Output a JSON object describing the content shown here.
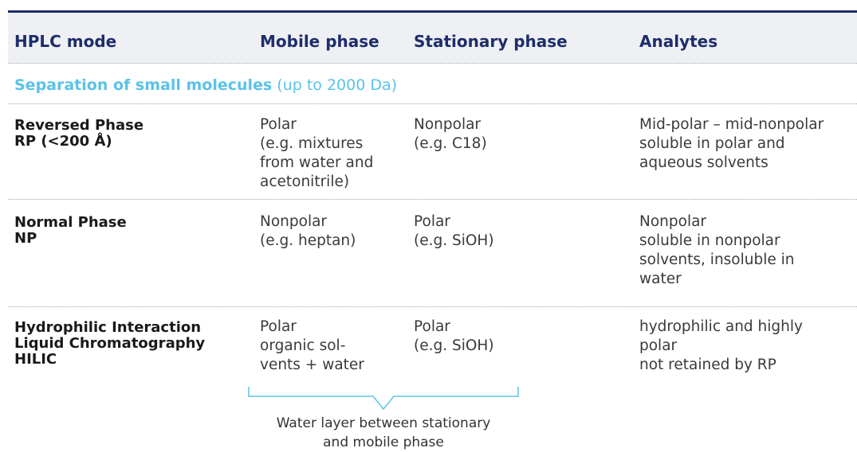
{
  "header": [
    "HPLC mode",
    "Mobile phase",
    "Stationary phase",
    "Analytes"
  ],
  "section": {
    "title": "Separation of small molecules",
    "note": "(up to 2000 Da)"
  },
  "rows": [
    [
      [
        "Reversed Phase",
        "RP (<200 Å)"
      ],
      [
        "Polar",
        "(e.g. mixtures",
        "from water and",
        "acetonitrile)"
      ],
      [
        "Nonpolar",
        "(e.g. C18)"
      ],
      [
        "Mid-polar – mid-nonpolar",
        "soluble in polar and",
        "aqueous solvents"
      ]
    ],
    [
      [
        "Normal Phase",
        "NP"
      ],
      [
        "Nonpolar",
        "(e.g. heptan)"
      ],
      [
        "Polar",
        "(e.g. SiOH)"
      ],
      [
        "Nonpolar",
        "soluble in nonpolar",
        "solvents, insoluble in",
        "water"
      ]
    ],
    [
      [
        "Hydrophilic Interaction",
        "Liquid Chromatography",
        "HILIC"
      ],
      [
        "Polar",
        "organic sol-",
        "vents + water"
      ],
      [
        "Polar",
        "(e.g. SiOH)"
      ],
      [
        "hydrophilic and highly",
        "polar",
        "not retained by RP"
      ]
    ]
  ],
  "annotation": [
    "Water layer between stationary",
    "and mobile phase"
  ]
}
